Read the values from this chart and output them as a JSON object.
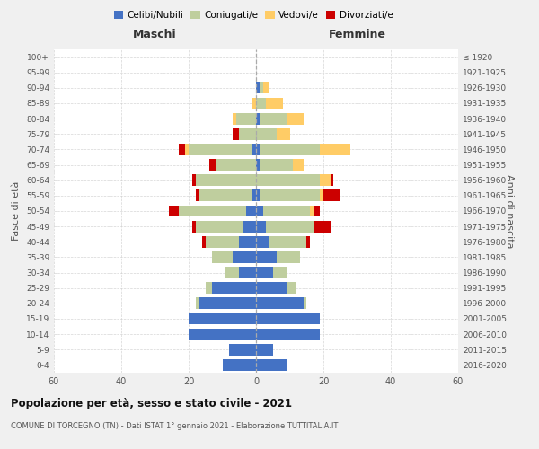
{
  "age_groups": [
    "0-4",
    "5-9",
    "10-14",
    "15-19",
    "20-24",
    "25-29",
    "30-34",
    "35-39",
    "40-44",
    "45-49",
    "50-54",
    "55-59",
    "60-64",
    "65-69",
    "70-74",
    "75-79",
    "80-84",
    "85-89",
    "90-94",
    "95-99",
    "100+"
  ],
  "birth_years": [
    "2016-2020",
    "2011-2015",
    "2006-2010",
    "2001-2005",
    "1996-2000",
    "1991-1995",
    "1986-1990",
    "1981-1985",
    "1976-1980",
    "1971-1975",
    "1966-1970",
    "1961-1965",
    "1956-1960",
    "1951-1955",
    "1946-1950",
    "1941-1945",
    "1936-1940",
    "1931-1935",
    "1926-1930",
    "1921-1925",
    "≤ 1920"
  ],
  "males": {
    "celibi": [
      10,
      8,
      20,
      20,
      17,
      13,
      5,
      7,
      5,
      4,
      3,
      1,
      0,
      0,
      1,
      0,
      0,
      0,
      0,
      0,
      0
    ],
    "coniugati": [
      0,
      0,
      0,
      0,
      1,
      2,
      4,
      6,
      10,
      14,
      20,
      16,
      18,
      12,
      19,
      5,
      6,
      0,
      0,
      0,
      0
    ],
    "vedovi": [
      0,
      0,
      0,
      0,
      0,
      0,
      0,
      0,
      0,
      0,
      0,
      0,
      0,
      0,
      1,
      0,
      1,
      1,
      0,
      0,
      0
    ],
    "divorziati": [
      0,
      0,
      0,
      0,
      0,
      0,
      0,
      0,
      1,
      1,
      3,
      1,
      1,
      2,
      2,
      2,
      0,
      0,
      0,
      0,
      0
    ]
  },
  "females": {
    "nubili": [
      9,
      5,
      19,
      19,
      14,
      9,
      5,
      6,
      4,
      3,
      2,
      1,
      0,
      1,
      1,
      0,
      1,
      0,
      1,
      0,
      0
    ],
    "coniugate": [
      0,
      0,
      0,
      0,
      1,
      3,
      4,
      7,
      11,
      14,
      14,
      18,
      19,
      10,
      18,
      6,
      8,
      3,
      1,
      0,
      0
    ],
    "vedove": [
      0,
      0,
      0,
      0,
      0,
      0,
      0,
      0,
      0,
      0,
      1,
      1,
      3,
      3,
      9,
      4,
      5,
      5,
      2,
      0,
      0
    ],
    "divorziate": [
      0,
      0,
      0,
      0,
      0,
      0,
      0,
      0,
      1,
      5,
      2,
      5,
      1,
      0,
      0,
      0,
      0,
      0,
      0,
      0,
      0
    ]
  },
  "color_celibi": "#4472C4",
  "color_coniugati": "#BFCE9E",
  "color_vedovi": "#FFCC66",
  "color_divorziati": "#CC0000",
  "title1": "Popolazione per età, sesso e stato civile - 2021",
  "title2": "COMUNE DI TORCEGNO (TN) - Dati ISTAT 1° gennaio 2021 - Elaborazione TUTTITALIA.IT",
  "xlabel_left": "Maschi",
  "xlabel_right": "Femmine",
  "ylabel_left": "Fasce di età",
  "ylabel_right": "Anni di nascita",
  "xlim": 60,
  "background_color": "#f0f0f0",
  "plot_bg_color": "#ffffff",
  "grid_color": "#cccccc"
}
